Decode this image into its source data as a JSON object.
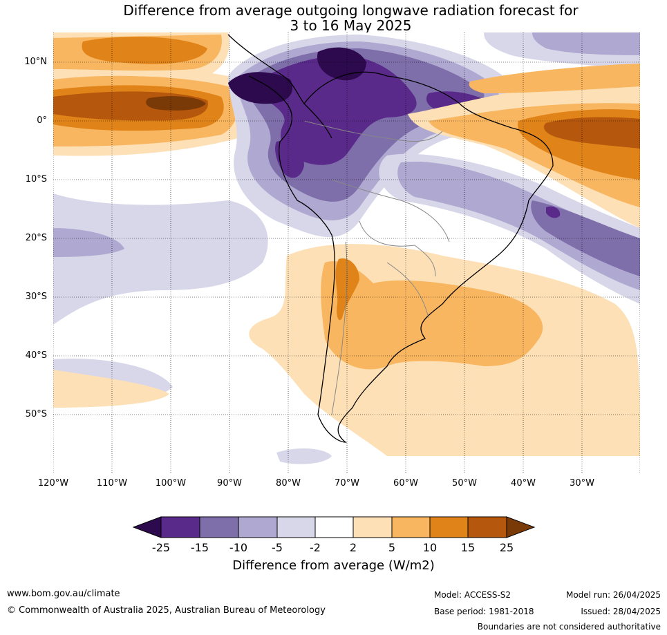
{
  "title_line1": "Difference from average outgoing longwave radiation forecast for",
  "title_line2": "3 to 16 May 2025",
  "lat_labels": [
    "10°N",
    "0°",
    "10°S",
    "20°S",
    "30°S",
    "40°S",
    "50°S"
  ],
  "lon_labels": [
    "120°W",
    "110°W",
    "100°W",
    "90°W",
    "80°W",
    "70°W",
    "60°W",
    "50°W",
    "40°W",
    "30°W"
  ],
  "colorbar": {
    "ticks": [
      "-25",
      "-15",
      "-10",
      "-5",
      "-2",
      "2",
      "5",
      "10",
      "15",
      "25"
    ],
    "colors": [
      "#2d0a4e",
      "#5a2a8a",
      "#7e6fab",
      "#afa8d0",
      "#d8d7ea",
      "#ffffff",
      "#fde0b6",
      "#f9b660",
      "#e08318",
      "#b5570c",
      "#7a3a08"
    ],
    "title": "Difference from average (W/m2)"
  },
  "footer": {
    "url": "www.bom.gov.au/climate",
    "copyright": "© Commonwealth of Australia 2025, Australian Bureau of Meteorology",
    "model": "Model: ACCESS-S2",
    "base_period": "Base period: 1981-2018",
    "model_run": "Model run: 26/04/2025",
    "issued": "Issued: 28/04/2025",
    "disclaimer": "Boundaries are not considered authoritative"
  }
}
